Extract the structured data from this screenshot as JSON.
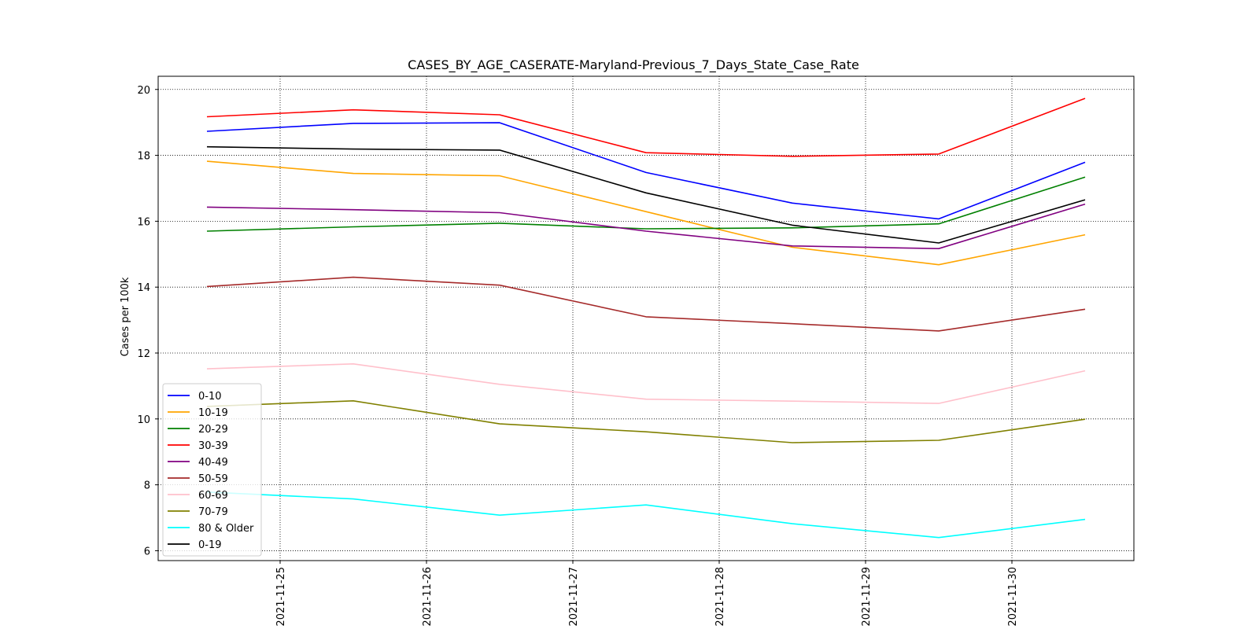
{
  "chart_data": {
    "type": "line",
    "title": "CASES_BY_AGE_CASERATE-Maryland-Previous_7_Days_State_Case_Rate",
    "xlabel": "",
    "ylabel": "Cases per 100k",
    "x": [
      "2021-11-24 12:00",
      "2021-11-25 12:00",
      "2021-11-26 12:00",
      "2021-11-27 12:00",
      "2021-11-28 12:00",
      "2021-11-29 12:00",
      "2021-11-30 12:00"
    ],
    "xticks": [
      "2021-11-25",
      "2021-11-26",
      "2021-11-27",
      "2021-11-28",
      "2021-11-29",
      "2021-11-30"
    ],
    "xlim": [
      "2021-11-24 04:00",
      "2021-11-30 20:00"
    ],
    "ylim": [
      5.7,
      20.4
    ],
    "yticks": [
      6,
      8,
      10,
      12,
      14,
      16,
      18,
      20
    ],
    "grid": true,
    "grid_style": "dotted",
    "legend_position": "lower-left",
    "series": [
      {
        "name": "0-10",
        "color": "#0000ff",
        "values": [
          18.73,
          18.97,
          18.99,
          17.48,
          16.55,
          16.07,
          17.79
        ]
      },
      {
        "name": "10-19",
        "color": "#ffa500",
        "values": [
          17.82,
          17.45,
          17.38,
          16.29,
          15.21,
          14.68,
          15.59
        ]
      },
      {
        "name": "20-29",
        "color": "#008000",
        "values": [
          15.7,
          15.83,
          15.94,
          15.77,
          15.8,
          15.92,
          17.34
        ]
      },
      {
        "name": "30-39",
        "color": "#ff0000",
        "values": [
          19.17,
          19.38,
          19.23,
          18.08,
          17.97,
          18.04,
          19.73
        ]
      },
      {
        "name": "40-49",
        "color": "#800080",
        "values": [
          16.43,
          16.35,
          16.26,
          15.7,
          15.25,
          15.17,
          16.52
        ]
      },
      {
        "name": "50-59",
        "color": "#a52a2a",
        "values": [
          14.02,
          14.3,
          14.06,
          13.1,
          12.89,
          12.67,
          13.33
        ]
      },
      {
        "name": "60-69",
        "color": "#ffc0cb",
        "values": [
          11.52,
          11.67,
          11.05,
          10.6,
          10.54,
          10.47,
          11.46
        ]
      },
      {
        "name": "70-79",
        "color": "#808000",
        "values": [
          10.38,
          10.55,
          9.85,
          9.61,
          9.28,
          9.35,
          9.99
        ]
      },
      {
        "name": "80 & Older",
        "color": "#00ffff",
        "values": [
          7.78,
          7.57,
          7.08,
          7.39,
          6.82,
          6.4,
          6.95
        ]
      },
      {
        "name": "0-19",
        "color": "#000000",
        "values": [
          18.26,
          18.19,
          18.16,
          16.86,
          15.88,
          15.34,
          16.65
        ]
      }
    ]
  }
}
